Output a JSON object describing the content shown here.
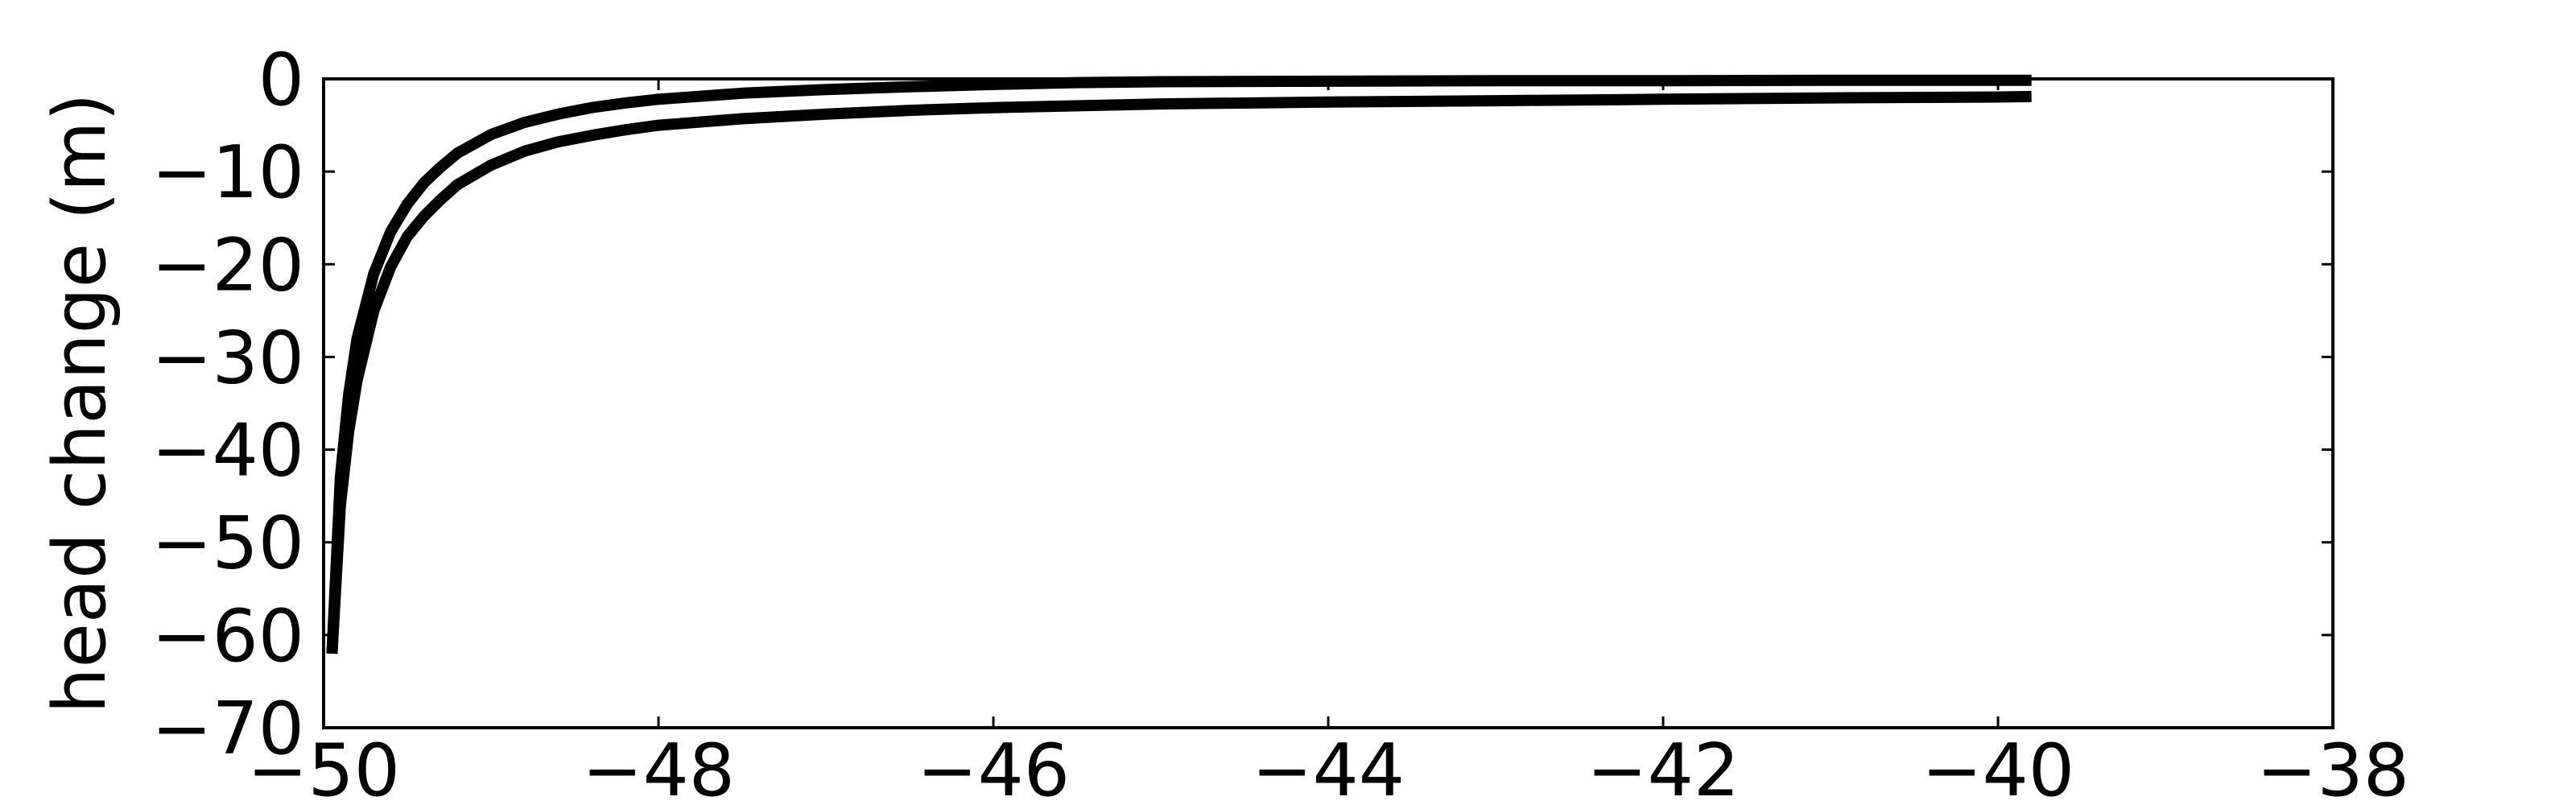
{
  "chart_data": {
    "type": "line",
    "title": "",
    "xlabel": "",
    "ylabel": "head change (m)",
    "xlim": [
      -50,
      -38
    ],
    "ylim": [
      -70,
      0
    ],
    "xticks": [
      -50,
      -48,
      -46,
      -44,
      -42,
      -40,
      -38
    ],
    "yticks": [
      0,
      -10,
      -20,
      -30,
      -40,
      -50,
      -60,
      -70
    ],
    "xtick_labels": [
      "−50",
      "−48",
      "−46",
      "−44",
      "−42",
      "−40",
      "−38"
    ],
    "ytick_labels": [
      "0",
      "−10",
      "−20",
      "−30",
      "−40",
      "−50",
      "−60",
      "−70"
    ],
    "grid": false,
    "legend": "none",
    "line_color": "#000000",
    "series": [
      {
        "x": [
          -49.95,
          -49.9,
          -49.85,
          -49.8,
          -49.7,
          -49.6,
          -49.5,
          -49.4,
          -49.3,
          -49.2,
          -49.0,
          -48.8,
          -48.6,
          -48.4,
          -48.2,
          -48.0,
          -47.5,
          -47.0,
          -46.5,
          -46.0,
          -45.0,
          -44.0,
          -43.0,
          -42.0,
          -41.0,
          -40.0,
          -39.8
        ],
        "y": [
          -62,
          -46,
          -38,
          -32.5,
          -25,
          -20.3,
          -17,
          -14.8,
          -13,
          -11.4,
          -9.3,
          -7.8,
          -6.8,
          -6.1,
          -5.5,
          -5.0,
          -4.3,
          -3.8,
          -3.4,
          -3.1,
          -2.7,
          -2.5,
          -2.35,
          -2.2,
          -2.05,
          -1.95,
          -1.9
        ]
      },
      {
        "x": [
          -49.95,
          -49.9,
          -49.85,
          -49.8,
          -49.7,
          -49.6,
          -49.5,
          -49.4,
          -49.3,
          -49.2,
          -49.0,
          -48.8,
          -48.6,
          -48.4,
          -48.2,
          -48.0,
          -47.5,
          -47.0,
          -46.5,
          -46.0,
          -45.5,
          -45.0,
          -44.0,
          -43.0,
          -42.0,
          -41.0,
          -40.0,
          -39.8
        ],
        "y": [
          -62,
          -43,
          -34,
          -28,
          -21,
          -16.5,
          -13.5,
          -11.2,
          -9.5,
          -8.0,
          -6.0,
          -4.7,
          -3.8,
          -3.1,
          -2.6,
          -2.2,
          -1.55,
          -1.15,
          -0.85,
          -0.6,
          -0.4,
          -0.3,
          -0.25,
          -0.2,
          -0.2,
          -0.15,
          -0.15,
          -0.15
        ]
      }
    ]
  }
}
